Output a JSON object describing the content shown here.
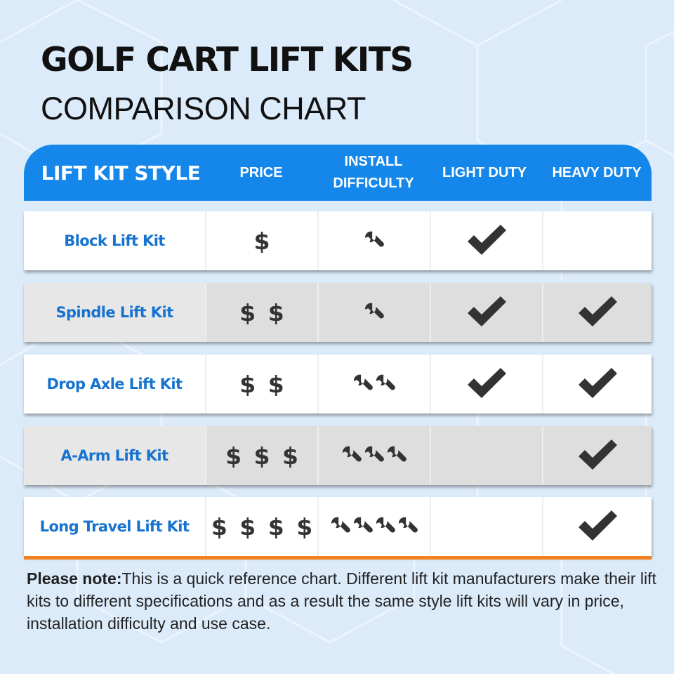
{
  "title": "GOLF CART LIFT KITS",
  "subtitle": "COMPARISON CHART",
  "header": {
    "style": "LIFT KIT STYLE",
    "price": "PRICE",
    "install_line1": "INSTALL",
    "install_line2": "DIFFICULTY",
    "light": "LIGHT DUTY",
    "heavy": "HEAVY DUTY"
  },
  "rows": [
    {
      "name": "Block Lift Kit",
      "price": "$",
      "difficulty": 1,
      "light_duty": true,
      "heavy_duty": false
    },
    {
      "name": "Spindle Lift Kit",
      "price": "$ $",
      "difficulty": 1,
      "light_duty": true,
      "heavy_duty": true
    },
    {
      "name": "Drop Axle Lift Kit",
      "price": "$ $",
      "difficulty": 2,
      "light_duty": true,
      "heavy_duty": true
    },
    {
      "name": "A-Arm Lift Kit",
      "price": "$ $ $",
      "difficulty": 3,
      "light_duty": false,
      "heavy_duty": true
    },
    {
      "name": "Long Travel Lift Kit",
      "price": "$ $ $ $",
      "difficulty": 4,
      "light_duty": false,
      "heavy_duty": true
    }
  ],
  "icons": {
    "difficulty": "wrench-icon",
    "duty": "checkmark-icon"
  },
  "colors": {
    "header": "#1587ea",
    "label": "#1673cf",
    "accent_line": "#f2821f",
    "icon": "#333333"
  },
  "note": {
    "bold": "Please note:",
    "text": "This is a quick reference chart. Different lift kit manufacturers make their lift kits to different specifications and as a result the same style lift kits will vary in price, installation difficulty and use case."
  }
}
